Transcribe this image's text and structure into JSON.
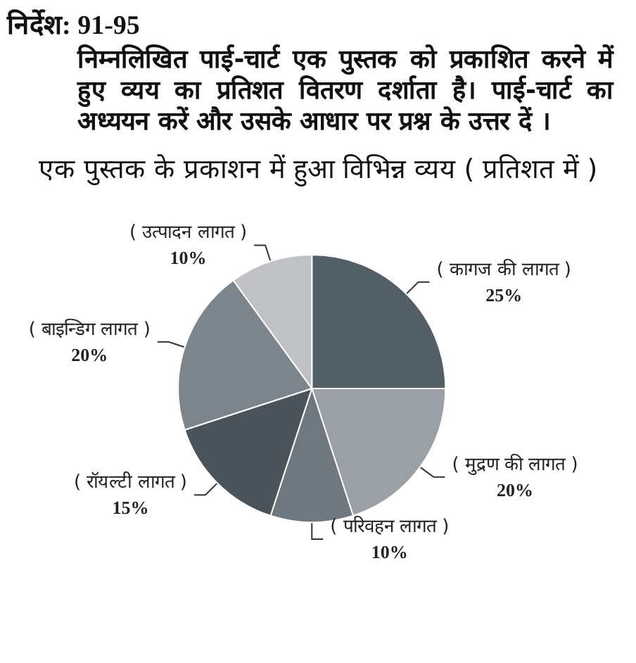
{
  "chart_data": {
    "type": "pie",
    "title": "एक पुस्तक के प्रकाशन में हुआ विभिन्न व्यय ( प्रतिशत में )",
    "annotations": [
      "निर्देश: 91-95",
      "निम्नलिखित पाई-चार्ट एक पुस्तक को प्रकाशित करने में हुए व्यय का प्रतिशत वितरण दर्शाता है। पाई-चार्ट का अध्ययन करें और उसके आधार पर प्रश्न के उत्तर दें ।"
    ],
    "categories": [
      "( कागज की लागत )",
      "( मुद्रण की लागत )",
      "( परिवहन लागत )",
      "( रॉयल्टी लागत )",
      "( बाइन्डिग लागत )",
      "( उत्पादन लागत )"
    ],
    "values": [
      25,
      20,
      10,
      15,
      20,
      10
    ],
    "value_labels": [
      "25%",
      "20%",
      "10%",
      "15%",
      "20%",
      "10%"
    ],
    "colors": [
      "#535f67",
      "#9b9fa6",
      "#6f787f",
      "#4b545b",
      "#7d858c",
      "#bfc1c5"
    ]
  }
}
